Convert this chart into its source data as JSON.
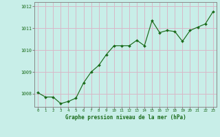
{
  "x": [
    0,
    1,
    2,
    3,
    4,
    5,
    6,
    7,
    8,
    9,
    10,
    11,
    12,
    13,
    14,
    15,
    16,
    17,
    18,
    19,
    20,
    21,
    22,
    23
  ],
  "y": [
    1008.05,
    1007.85,
    1007.85,
    1007.55,
    1007.65,
    1007.8,
    1008.5,
    1009.0,
    1009.3,
    1009.8,
    1010.2,
    1010.2,
    1010.2,
    1010.45,
    1010.2,
    1011.35,
    1010.8,
    1010.9,
    1010.85,
    1010.4,
    1010.9,
    1011.05,
    1011.2,
    1011.75
  ],
  "line_color": "#1a6b1a",
  "marker_color": "#1a6b1a",
  "bg_plot": "#c8eee8",
  "bg_fig": "#c8eee8",
  "grid_color": "#d8b8c8",
  "xlabel": "Graphe pression niveau de la mer (hPa)",
  "xlabel_color": "#1a6b1a",
  "tick_color": "#1a6b1a",
  "ylim": [
    1007.4,
    1012.2
  ],
  "yticks": [
    1008,
    1009,
    1010,
    1011,
    1012
  ],
  "spine_color": "#888888"
}
